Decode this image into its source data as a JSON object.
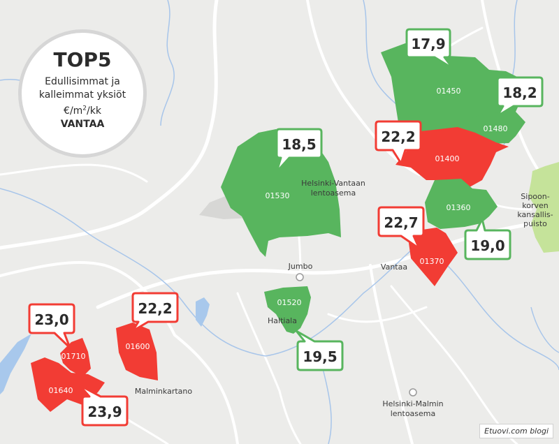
{
  "badge": {
    "title": "TOP5",
    "subtitle_lines": [
      "Edullisimmat ja",
      "kalleimmat yksiöt"
    ],
    "unit_prefix": "€/m",
    "unit_sup": "2",
    "unit_suffix": "/kk",
    "city": "VANTAA"
  },
  "credit": "Etuovi.com blogi",
  "colors": {
    "green": "#58b55e",
    "red": "#f23c34",
    "park": "#c5e39a",
    "water": "#a8c8ec",
    "river": "#a7c5ea",
    "road": "#ffffff",
    "background": "#ececea"
  },
  "zones": [
    {
      "code": "01450",
      "category": "cheap"
    },
    {
      "code": "01480",
      "category": "cheap"
    },
    {
      "code": "01400",
      "category": "expensive"
    },
    {
      "code": "01530",
      "category": "cheap"
    },
    {
      "code": "01360",
      "category": "cheap"
    },
    {
      "code": "01370",
      "category": "expensive"
    },
    {
      "code": "01520",
      "category": "cheap"
    },
    {
      "code": "01600",
      "category": "expensive"
    },
    {
      "code": "01710",
      "category": "expensive"
    },
    {
      "code": "01640",
      "category": "expensive"
    }
  ],
  "callouts": [
    {
      "value": "17,9",
      "category": "cheap"
    },
    {
      "value": "18,2",
      "category": "cheap"
    },
    {
      "value": "22,2",
      "category": "expensive"
    },
    {
      "value": "18,5",
      "category": "cheap"
    },
    {
      "value": "22,7",
      "category": "expensive"
    },
    {
      "value": "19,0",
      "category": "cheap"
    },
    {
      "value": "23,0",
      "category": "expensive"
    },
    {
      "value": "22,2",
      "category": "expensive"
    },
    {
      "value": "19,5",
      "category": "cheap"
    },
    {
      "value": "23,9",
      "category": "expensive"
    }
  ],
  "places": {
    "airport_1": "Helsinki-Vantaan",
    "airport_2": "lentoasema",
    "jumbo": "Jumbo",
    "vantaa": "Vantaa",
    "haltiala": "Haltiala",
    "malminkartano": "Malminkartano",
    "malmi_1": "Helsinki-Malmin",
    "malmi_2": "lentoasema",
    "sipoo_1": "Sipoon-",
    "sipoo_2": "korven",
    "sipoo_3": "kansallis-",
    "sipoo_4": "puisto"
  }
}
